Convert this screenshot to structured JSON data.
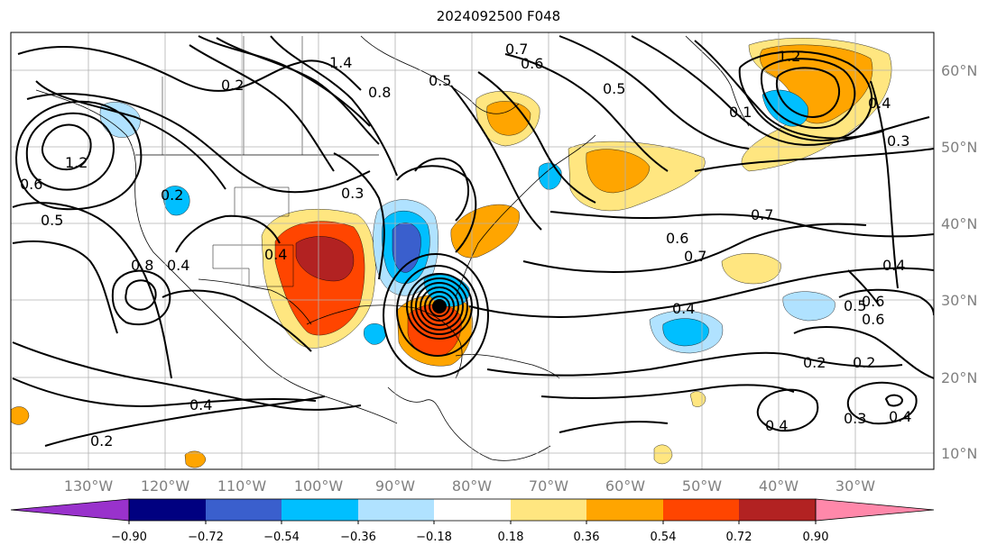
{
  "title": "2024092500 F048",
  "map": {
    "lon_ticks": [
      "130°W",
      "120°W",
      "110°W",
      "100°W",
      "90°W",
      "80°W",
      "70°W",
      "60°W",
      "50°W",
      "40°W",
      "30°W"
    ],
    "lat_ticks": [
      "60°N",
      "50°N",
      "40°N",
      "30°N",
      "20°N",
      "10°N"
    ],
    "contour_labels": [
      "1.4",
      "0.2",
      "0.8",
      "0.5",
      "0.6",
      "0.7",
      "0.5",
      "0.1",
      "0.4",
      "0.3",
      "1.2",
      "0.6",
      "0.2",
      "0.3",
      "0.5",
      "0.4",
      "0.8",
      "0.4",
      "0.6",
      "0.7",
      "0.7",
      "0.4",
      "0.6",
      "0.4",
      "0.6",
      "0.5",
      "0.2",
      "0.2",
      "0.4",
      "0.3",
      "0.4",
      "0.4",
      "0.2",
      "1.2"
    ],
    "colorbar": {
      "ticks": [
        "−0.90",
        "−0.72",
        "−0.54",
        "−0.36",
        "−0.18",
        "0.18",
        "0.36",
        "0.54",
        "0.72",
        "0.90"
      ],
      "colors": [
        "#9932cc",
        "#000080",
        "#3a5fcd",
        "#00bfff",
        "#b0e2ff",
        "#ffffff",
        "#ffe680",
        "#ffa500",
        "#ff4500",
        "#b22222",
        "#ff88aa"
      ]
    }
  }
}
